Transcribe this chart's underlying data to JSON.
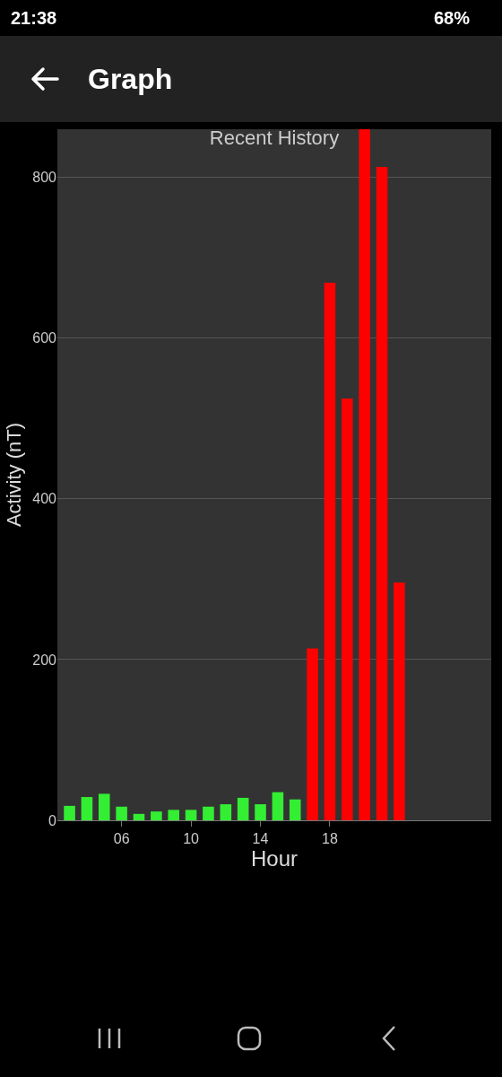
{
  "chart_data": {
    "type": "bar",
    "title": "Recent History",
    "xlabel": "Hour",
    "ylabel": "Activity (nT)",
    "annotations": [
      "21:38",
      "68%",
      "Graph"
    ],
    "x": [
      3,
      4,
      5,
      6,
      7,
      8,
      9,
      10,
      11,
      12,
      13,
      14,
      15,
      16,
      17,
      18,
      19,
      20,
      21,
      22
    ],
    "values": [
      18,
      29,
      33,
      17,
      8,
      11,
      13,
      13,
      17,
      20,
      28,
      20,
      35,
      26,
      214,
      669,
      525,
      860,
      813,
      296
    ],
    "colors": [
      "#33ee33",
      "#33ee33",
      "#33ee33",
      "#33ee33",
      "#33ee33",
      "#33ee33",
      "#33ee33",
      "#33ee33",
      "#33ee33",
      "#33ee33",
      "#33ee33",
      "#33ee33",
      "#33ee33",
      "#33ee33",
      "#ff0000",
      "#ff0000",
      "#ff0000",
      "#ff0000",
      "#ff0000",
      "#ff0000"
    ],
    "xlim": [
      2.3,
      27.3
    ],
    "xticks": [
      {
        "value": 6,
        "label": "06"
      },
      {
        "value": 10,
        "label": "10"
      },
      {
        "value": 14,
        "label": "14"
      },
      {
        "value": 18,
        "label": "18"
      }
    ],
    "ylim": [
      0,
      860
    ],
    "yticks": [
      0,
      200,
      400,
      600,
      800
    ],
    "grid": "y"
  }
}
